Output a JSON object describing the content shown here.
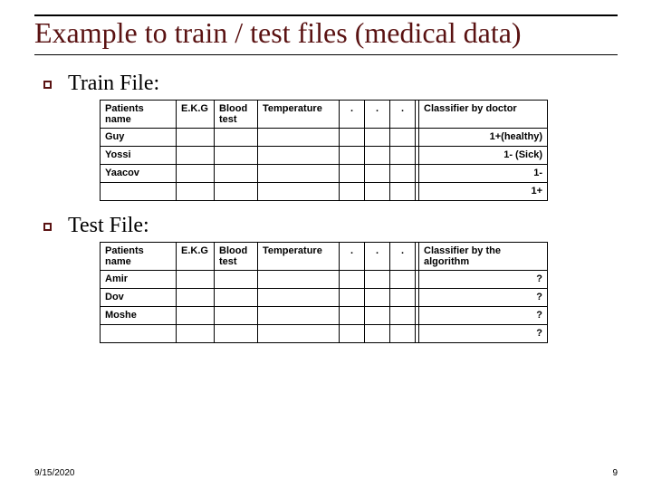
{
  "title": "Example to train / test files (medical data)",
  "colors": {
    "title_color": "#5a1212",
    "bullet_border": "#5a1212",
    "table_border": "#000000",
    "background": "#ffffff"
  },
  "typography": {
    "title_fontsize": 32,
    "section_fontsize": 24,
    "table_fontsize": 11,
    "table_fontweight": "bold",
    "title_font": "Times New Roman",
    "table_font": "Arial"
  },
  "sections": {
    "train": {
      "label": "Train File:"
    },
    "test": {
      "label": "Test File:"
    }
  },
  "train_table": {
    "headers": {
      "c0": "Patients name",
      "c1": "E.K.G",
      "c2": "Blood test",
      "c3": "Temperature",
      "c4": ".",
      "c5": ".",
      "c6": ".",
      "c8": "Classifier by doctor"
    },
    "rows": [
      {
        "name": "Guy",
        "cls": "1+(healthy)"
      },
      {
        "name": "Yossi",
        "cls": "1-  (Sick)"
      },
      {
        "name": "Yaacov",
        "cls": "1-"
      },
      {
        "name": "",
        "cls": "1+"
      }
    ]
  },
  "test_table": {
    "headers": {
      "c0": "Patients name",
      "c1": "E.K.G",
      "c2": "Blood test",
      "c3": "Temperature",
      "c4": ".",
      "c5": ".",
      "c6": ".",
      "c8": "Classifier by the algorithm"
    },
    "rows": [
      {
        "name": "Amir",
        "cls": "?"
      },
      {
        "name": "Dov",
        "cls": "?"
      },
      {
        "name": "Moshe",
        "cls": "?"
      },
      {
        "name": "",
        "cls": "?"
      }
    ]
  },
  "footer": {
    "date": "9/15/2020",
    "page": "9"
  }
}
